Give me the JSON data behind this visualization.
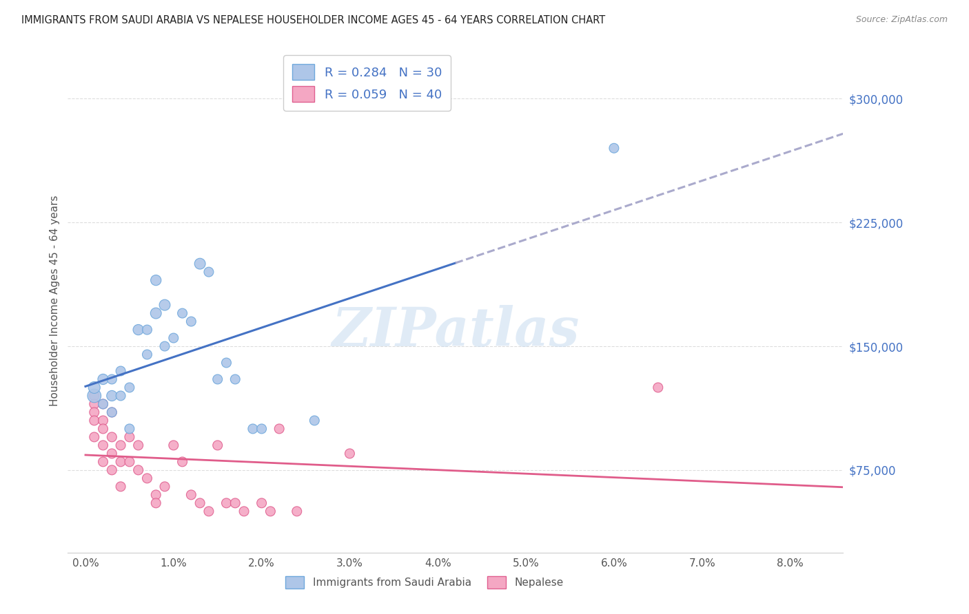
{
  "title": "IMMIGRANTS FROM SAUDI ARABIA VS NEPALESE HOUSEHOLDER INCOME AGES 45 - 64 YEARS CORRELATION CHART",
  "source": "Source: ZipAtlas.com",
  "ylabel": "Householder Income Ages 45 - 64 years",
  "xlabel_ticks": [
    "0.0%",
    "1.0%",
    "2.0%",
    "3.0%",
    "4.0%",
    "5.0%",
    "6.0%",
    "7.0%",
    "8.0%"
  ],
  "xlabel_vals": [
    0.0,
    0.01,
    0.02,
    0.03,
    0.04,
    0.05,
    0.06,
    0.07,
    0.08
  ],
  "ytick_labels": [
    "$75,000",
    "$150,000",
    "$225,000",
    "$300,000"
  ],
  "ytick_vals": [
    75000,
    150000,
    225000,
    300000
  ],
  "xlim": [
    -0.002,
    0.086
  ],
  "ylim": [
    25000,
    330000
  ],
  "watermark": "ZIPatlas",
  "saudi_color": "#AEC6E8",
  "saudi_edge_color": "#6FA8DC",
  "saudi_R": 0.284,
  "saudi_N": 30,
  "saudi_line_color": "#4472C4",
  "nepal_color": "#F4A7C3",
  "nepal_edge_color": "#E06090",
  "nepal_R": 0.059,
  "nepal_N": 40,
  "nepal_line_color": "#E05C8A",
  "dashed_line_color": "#AAAACC",
  "saudi_x": [
    0.001,
    0.001,
    0.002,
    0.002,
    0.003,
    0.003,
    0.003,
    0.004,
    0.004,
    0.005,
    0.005,
    0.006,
    0.007,
    0.007,
    0.008,
    0.008,
    0.009,
    0.009,
    0.01,
    0.011,
    0.012,
    0.013,
    0.014,
    0.015,
    0.016,
    0.017,
    0.019,
    0.02,
    0.06,
    0.026
  ],
  "saudi_y": [
    120000,
    125000,
    130000,
    115000,
    120000,
    130000,
    110000,
    135000,
    120000,
    125000,
    100000,
    160000,
    145000,
    160000,
    170000,
    190000,
    175000,
    150000,
    155000,
    170000,
    165000,
    200000,
    195000,
    130000,
    140000,
    130000,
    100000,
    100000,
    270000,
    105000
  ],
  "saudi_sizes": [
    200,
    150,
    120,
    100,
    120,
    100,
    100,
    100,
    100,
    100,
    100,
    120,
    100,
    100,
    130,
    120,
    130,
    100,
    100,
    100,
    100,
    130,
    100,
    100,
    100,
    100,
    100,
    100,
    100,
    100
  ],
  "nepal_x": [
    0.001,
    0.001,
    0.001,
    0.001,
    0.001,
    0.002,
    0.002,
    0.002,
    0.002,
    0.002,
    0.003,
    0.003,
    0.003,
    0.003,
    0.004,
    0.004,
    0.004,
    0.005,
    0.005,
    0.006,
    0.006,
    0.007,
    0.008,
    0.008,
    0.009,
    0.01,
    0.011,
    0.012,
    0.013,
    0.014,
    0.015,
    0.016,
    0.017,
    0.018,
    0.02,
    0.021,
    0.024,
    0.03,
    0.065,
    0.022
  ],
  "nepal_y": [
    120000,
    115000,
    110000,
    105000,
    95000,
    115000,
    105000,
    100000,
    90000,
    80000,
    110000,
    95000,
    85000,
    75000,
    90000,
    80000,
    65000,
    95000,
    80000,
    90000,
    75000,
    70000,
    60000,
    55000,
    65000,
    90000,
    80000,
    60000,
    55000,
    50000,
    90000,
    55000,
    55000,
    50000,
    55000,
    50000,
    50000,
    85000,
    125000,
    100000
  ],
  "nepal_sizes": [
    100,
    100,
    100,
    100,
    100,
    100,
    100,
    100,
    100,
    100,
    100,
    100,
    100,
    100,
    100,
    100,
    100,
    100,
    100,
    100,
    100,
    100,
    100,
    100,
    100,
    100,
    100,
    100,
    100,
    100,
    100,
    100,
    100,
    100,
    100,
    100,
    100,
    100,
    100,
    100
  ],
  "background_color": "#FFFFFF",
  "grid_color": "#DDDDDD"
}
